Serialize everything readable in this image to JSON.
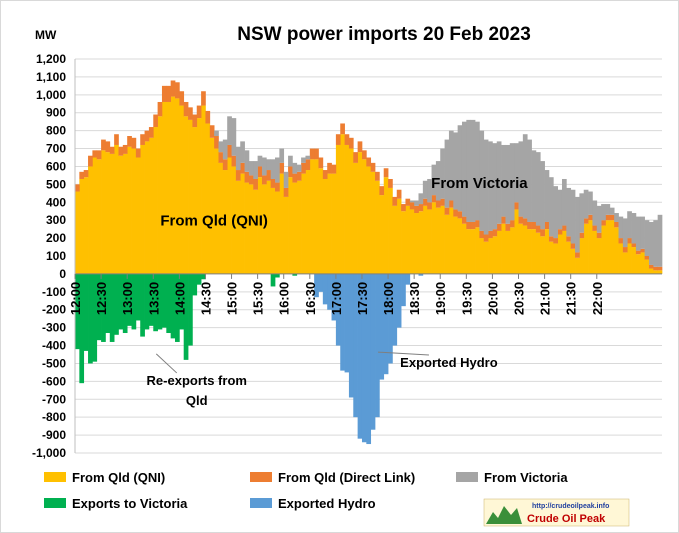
{
  "chart_data": {
    "type": "bar",
    "stacked": true,
    "title": "NSW power imports 20 Feb 2023",
    "ylabel": "MW",
    "ylim": [
      -1000,
      1200
    ],
    "yticks": [
      1200,
      1100,
      1000,
      900,
      800,
      700,
      600,
      500,
      400,
      300,
      200,
      100,
      0,
      -100,
      -200,
      -300,
      -400,
      -500,
      -600,
      -700,
      -800,
      -900,
      -1000
    ],
    "ytick_labels": [
      "1,200",
      "1,100",
      "1,000",
      "900",
      "800",
      "700",
      "600",
      "500",
      "400",
      "300",
      "200",
      "100",
      "0",
      "-100",
      "-200",
      "-300",
      "-400",
      "-500",
      "-600",
      "-700",
      "-800",
      "-900",
      "-1,000"
    ],
    "x_labels": [
      "12:00",
      "12:30",
      "13:00",
      "13:30",
      "14:00",
      "14:30",
      "15:00",
      "15:30",
      "16:00",
      "16:30",
      "17:00",
      "17:30",
      "18:00",
      "18:30",
      "19:00",
      "19:30",
      "20:00",
      "20:30",
      "21:00",
      "21:30",
      "22:00"
    ],
    "interval_minutes": 5,
    "grid": true,
    "legend_position": "bottom",
    "series": [
      {
        "name": "From Qld (QNI)",
        "color": "#FFC000",
        "values": [
          460,
          530,
          540,
          600,
          650,
          640,
          690,
          680,
          670,
          720,
          660,
          670,
          710,
          700,
          650,
          720,
          740,
          760,
          820,
          880,
          960,
          960,
          990,
          980,
          940,
          880,
          860,
          820,
          870,
          940,
          840,
          760,
          700,
          620,
          580,
          650,
          600,
          520,
          560,
          510,
          500,
          470,
          540,
          500,
          520,
          480,
          460,
          560,
          430,
          540,
          510,
          520,
          560,
          580,
          640,
          640,
          590,
          530,
          560,
          560,
          720,
          780,
          720,
          700,
          620,
          680,
          640,
          600,
          570,
          520,
          440,
          540,
          480,
          380,
          420,
          350,
          380,
          360,
          340,
          350,
          380,
          360,
          400,
          370,
          380,
          330,
          370,
          320,
          310,
          280,
          250,
          250,
          260,
          200,
          180,
          200,
          210,
          240,
          280,
          240,
          260,
          360,
          280,
          270,
          250,
          250,
          230,
          210,
          250,
          180,
          170,
          220,
          240,
          180,
          140,
          90,
          200,
          280,
          300,
          240,
          200,
          270,
          300,
          300,
          260,
          170,
          120,
          170,
          150,
          110,
          120,
          80,
          30,
          20,
          20
        ],
        "spark": true
      },
      {
        "name": "From Qld (Direct Link)",
        "color": "#ED7D31",
        "values": [
          40,
          40,
          40,
          60,
          40,
          50,
          60,
          60,
          40,
          60,
          50,
          50,
          60,
          60,
          50,
          60,
          60,
          60,
          70,
          80,
          90,
          90,
          90,
          90,
          80,
          80,
          70,
          70,
          70,
          80,
          70,
          70,
          70,
          60,
          60,
          70,
          60,
          60,
          60,
          60,
          50,
          60,
          60,
          50,
          60,
          50,
          50,
          60,
          50,
          60,
          50,
          50,
          60,
          60,
          60,
          60,
          60,
          50,
          60,
          50,
          60,
          60,
          60,
          60,
          60,
          60,
          50,
          50,
          50,
          50,
          50,
          50,
          50,
          50,
          50,
          40,
          40,
          40,
          40,
          40,
          40,
          40,
          40,
          40,
          40,
          40,
          40,
          40,
          40,
          40,
          40,
          40,
          40,
          40,
          40,
          40,
          40,
          40,
          40,
          40,
          40,
          40,
          40,
          40,
          40,
          40,
          40,
          40,
          40,
          30,
          30,
          30,
          30,
          30,
          30,
          30,
          30,
          30,
          30,
          30,
          30,
          30,
          30,
          30,
          30,
          30,
          30,
          30,
          20,
          20,
          20,
          20,
          20,
          20,
          20
        ]
      },
      {
        "name": "From Victoria",
        "color": "#A5A5A5",
        "values": [
          0,
          0,
          0,
          0,
          0,
          0,
          0,
          0,
          0,
          0,
          0,
          0,
          0,
          0,
          0,
          0,
          0,
          0,
          0,
          0,
          0,
          0,
          0,
          0,
          0,
          0,
          0,
          0,
          0,
          0,
          0,
          0,
          30,
          60,
          110,
          160,
          210,
          130,
          120,
          120,
          80,
          100,
          60,
          100,
          60,
          110,
          140,
          80,
          90,
          60,
          60,
          40,
          30,
          20,
          0,
          0,
          0,
          0,
          0,
          0,
          0,
          0,
          0,
          0,
          0,
          0,
          0,
          0,
          0,
          0,
          0,
          0,
          0,
          0,
          0,
          0,
          0,
          10,
          30,
          60,
          100,
          130,
          170,
          220,
          280,
          380,
          390,
          430,
          480,
          530,
          570,
          570,
          550,
          560,
          530,
          500,
          480,
          460,
          400,
          440,
          430,
          330,
          420,
          470,
          460,
          400,
          410,
          380,
          290,
          330,
          290,
          220,
          260,
          270,
          300,
          310,
          220,
          160,
          130,
          140,
          150,
          90,
          60,
          40,
          50,
          120,
          160,
          150,
          170,
          190,
          180,
          200,
          240,
          260,
          290
        ]
      },
      {
        "name": "Exports to Victoria",
        "color": "#00B050",
        "values": [
          -420,
          -610,
          -430,
          -500,
          -490,
          -370,
          -380,
          -330,
          -380,
          -340,
          -310,
          -330,
          -290,
          -310,
          -260,
          -350,
          -310,
          -290,
          -320,
          -310,
          -300,
          -330,
          -360,
          -380,
          -310,
          -480,
          -400,
          -120,
          -60,
          -30,
          0,
          0,
          0,
          0,
          0,
          0,
          0,
          0,
          0,
          0,
          0,
          0,
          0,
          0,
          0,
          -70,
          -20,
          0,
          0,
          0,
          -10,
          0,
          0,
          0,
          0,
          0,
          0,
          0,
          0,
          0,
          0,
          0,
          0,
          0,
          0,
          0,
          0,
          0,
          0,
          0,
          0,
          0,
          0,
          0,
          0,
          0,
          0,
          0,
          0,
          0,
          0,
          0,
          0,
          0,
          0,
          0,
          0,
          0,
          0,
          0,
          0,
          0,
          0,
          0,
          0,
          0,
          0,
          0,
          0,
          0,
          0,
          0,
          0,
          0,
          0,
          0,
          0,
          0,
          0,
          0,
          0,
          0,
          0,
          0,
          0,
          0,
          0,
          0,
          0,
          0,
          0,
          0,
          0,
          0,
          0,
          0,
          0,
          0,
          0,
          0,
          0,
          0,
          0,
          0,
          0
        ]
      },
      {
        "name": "Exported Hydro",
        "color": "#5B9BD5",
        "values": [
          0,
          0,
          0,
          0,
          0,
          0,
          0,
          0,
          0,
          0,
          0,
          0,
          0,
          0,
          0,
          0,
          0,
          0,
          0,
          0,
          0,
          0,
          0,
          0,
          0,
          0,
          0,
          0,
          0,
          0,
          0,
          0,
          0,
          0,
          0,
          0,
          0,
          0,
          0,
          0,
          0,
          0,
          0,
          0,
          0,
          0,
          0,
          0,
          0,
          0,
          0,
          0,
          0,
          0,
          0,
          -130,
          -100,
          -170,
          -200,
          -260,
          -400,
          -540,
          -550,
          -690,
          -800,
          -920,
          -940,
          -950,
          -870,
          -800,
          -590,
          -560,
          -500,
          -400,
          -300,
          -180,
          -60,
          0,
          0,
          -10,
          0,
          0,
          0,
          0,
          0,
          0,
          0,
          0,
          0,
          0,
          0,
          0,
          0,
          0,
          0,
          0,
          0,
          0,
          0,
          0,
          0,
          0,
          0,
          0,
          0,
          0,
          0,
          0,
          0,
          0,
          0,
          0,
          0,
          0,
          0,
          0,
          0,
          0,
          0,
          0,
          0,
          0,
          0,
          0,
          0,
          0,
          0,
          0,
          0,
          0,
          0,
          0,
          0,
          0,
          0
        ]
      }
    ],
    "annotations": [
      {
        "text": "From Qld (QNI)",
        "x_time": "14:40",
        "y": 270
      },
      {
        "text": "From Victoria",
        "x_time": "19:45",
        "y": 480
      },
      {
        "lines": [
          "Re-exports from",
          "Qld"
        ],
        "x_time": "14:20",
        "y": -620,
        "arrow_to_time": "13:30",
        "arrow_to_y": -430
      },
      {
        "text": "Exported Hydro",
        "x_time": "19:10",
        "y": -520,
        "arrow_to_time": "17:45",
        "arrow_to_y": -420
      }
    ]
  },
  "badge": {
    "url": "http://crudeoilpeak.info",
    "name": "Crude Oil Peak"
  }
}
